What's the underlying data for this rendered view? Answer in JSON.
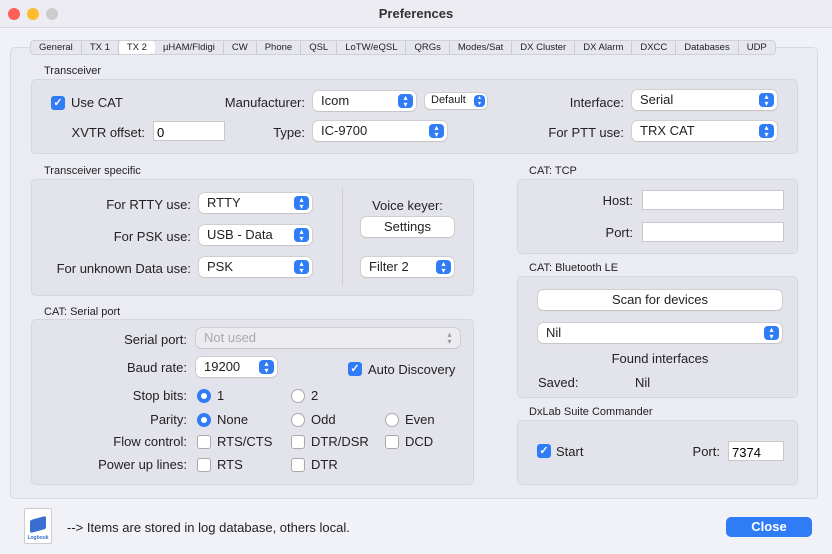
{
  "window": {
    "title": "Preferences"
  },
  "tabs": [
    "General",
    "TX 1",
    "TX 2",
    "µHAM/Fldigi",
    "CW",
    "Phone",
    "QSL",
    "LoTW/eQSL",
    "QRGs",
    "Modes/Sat",
    "DX Cluster",
    "DX Alarm",
    "DXCC",
    "Databases",
    "UDP"
  ],
  "selected_tab": "TX 2",
  "transceiver": {
    "title": "Transceiver",
    "use_cat": "Use CAT",
    "use_cat_checked": true,
    "manufacturer_label": "Manufacturer:",
    "manufacturer": "Icom",
    "variant": "Default",
    "interface_label": "Interface:",
    "interface": "Serial",
    "xvtr_label": "XVTR offset:",
    "xvtr": "0",
    "type_label": "Type:",
    "type": "IC-9700",
    "ptt_label": "For PTT use:",
    "ptt": "TRX CAT"
  },
  "specific": {
    "title": "Transceiver specific",
    "rtty_label": "For RTTY use:",
    "rtty": "RTTY",
    "psk_label": "For PSK use:",
    "psk": "USB - Data",
    "unknown_label": "For unknown Data use:",
    "unknown": "PSK",
    "voice_label": "Voice keyer:",
    "settings": "Settings",
    "filter": "Filter 2"
  },
  "serial": {
    "title": "CAT: Serial port",
    "port_label": "Serial port:",
    "port": "Not used",
    "baud_label": "Baud rate:",
    "baud": "19200",
    "auto": "Auto Discovery",
    "auto_checked": true,
    "stop_label": "Stop bits:",
    "stop1": "1",
    "stop2": "2",
    "stop_selected": "1",
    "parity_label": "Parity:",
    "none": "None",
    "odd": "Odd",
    "even": "Even",
    "parity_selected": "None",
    "flow_label": "Flow control:",
    "rtscts": "RTS/CTS",
    "dtrdsr": "DTR/DSR",
    "dcd": "DCD",
    "power_label": "Power up lines:",
    "rts": "RTS",
    "dtr": "DTR"
  },
  "tcp": {
    "title": "CAT: TCP",
    "host_label": "Host:",
    "host": "",
    "port_label": "Port:",
    "port": ""
  },
  "ble": {
    "title": "CAT: Bluetooth LE",
    "scan": "Scan for devices",
    "device": "Nil",
    "found": "Found interfaces",
    "saved_label": "Saved:",
    "saved": "Nil"
  },
  "dxlab": {
    "title": "DxLab Suite Commander",
    "start": "Start",
    "start_checked": true,
    "port_label": "Port:",
    "port": "7374"
  },
  "footer": {
    "note": "--> Items are stored in log database, others local.",
    "icon_text": "Logbook",
    "close": "Close"
  },
  "colors": {
    "accent": "#2f7cf6"
  }
}
